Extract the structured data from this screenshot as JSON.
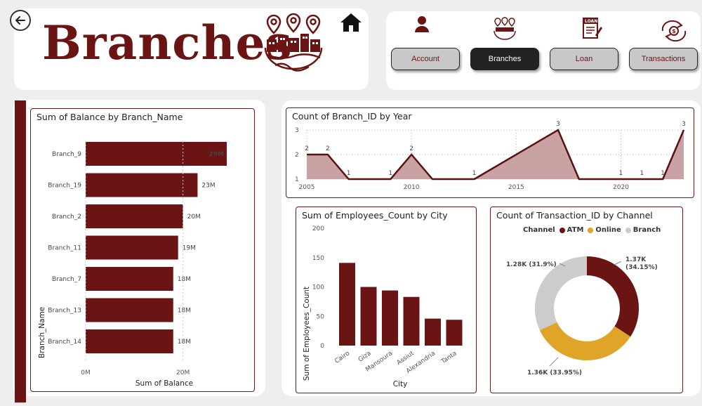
{
  "header": {
    "title": "Branches",
    "nav": [
      {
        "label": "Account",
        "active": false
      },
      {
        "label": "Branches",
        "active": true
      },
      {
        "label": "Loan",
        "active": false
      },
      {
        "label": "Transactions",
        "active": false
      }
    ],
    "loan_icon_text": "LOAN"
  },
  "colors": {
    "maroon": "#6b1414",
    "atm": "#6b1414",
    "online": "#e0a528",
    "branch": "#cccccc"
  },
  "chart_data": [
    {
      "type": "bar",
      "orientation": "horizontal",
      "title": "Sum of Balance by Branch_Name",
      "xlabel": "Sum of Balance",
      "ylabel": "Branch_Name",
      "categories": [
        "Branch_9",
        "Branch_19",
        "Branch_2",
        "Branch_11",
        "Branch_7",
        "Branch_13",
        "Branch_14"
      ],
      "values": [
        29,
        23,
        20,
        19,
        18,
        18,
        18
      ],
      "value_labels": [
        "29M",
        "23M",
        "20M",
        "19M",
        "18M",
        "18M",
        "18M"
      ],
      "xticks": [
        "0M",
        "20M"
      ],
      "xlim": [
        0,
        29
      ]
    },
    {
      "type": "area",
      "title": "Count of Branch_ID by Year",
      "x": [
        2005,
        2006,
        2007,
        2008,
        2009,
        2010,
        2011,
        2012,
        2013,
        2014,
        2015,
        2016,
        2017,
        2018,
        2019,
        2020,
        2021,
        2022,
        2023
      ],
      "values": [
        2,
        2,
        1,
        1,
        1,
        2,
        1,
        1,
        1,
        null,
        null,
        null,
        3,
        1,
        1,
        1,
        1,
        1,
        3
      ],
      "point_labels": [
        "2",
        "2",
        "1",
        "",
        "1",
        "2",
        "",
        "",
        "1",
        "",
        "",
        "",
        "3",
        "",
        "",
        "1",
        "1",
        "1",
        "3"
      ],
      "xticks": [
        "2005",
        "2010",
        "2015",
        "2020"
      ],
      "yticks": [
        "1",
        "2",
        "3"
      ],
      "ylim": [
        1,
        3
      ]
    },
    {
      "type": "bar",
      "title": "Sum of Employees_Count by City",
      "xlabel": "City",
      "ylabel": "Sum of Employees_Count",
      "categories": [
        "Cairo",
        "Giza",
        "Mansoura",
        "Assiut",
        "Alexandria",
        "Tanta"
      ],
      "values": [
        141,
        100,
        94,
        83,
        46,
        44
      ],
      "yticks": [
        "0",
        "50",
        "100",
        "150",
        "200"
      ],
      "ylim": [
        0,
        200
      ]
    },
    {
      "type": "pie",
      "style": "donut",
      "title": "Count of Transaction_ID by Channel",
      "legend_title": "Channel",
      "legend_position": "top-left",
      "categories": [
        "ATM",
        "Online",
        "Branch"
      ],
      "values": [
        34.15,
        33.95,
        31.9
      ],
      "slice_labels": [
        "1.37K (34.15%)",
        "1.36K (33.95%)",
        "1.28K (31.9%)"
      ]
    }
  ]
}
